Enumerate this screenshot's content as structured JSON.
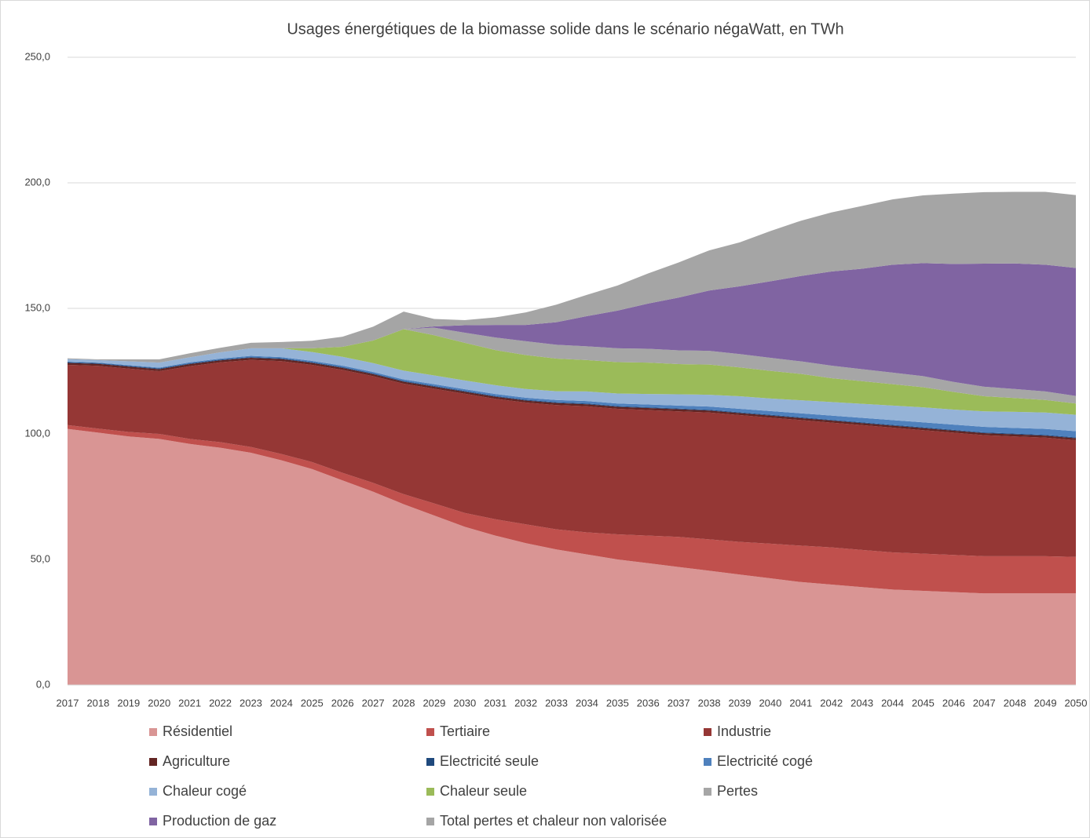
{
  "chart_data": {
    "type": "stacked_area",
    "title": "Usages énergétiques de la biomasse solide dans le scénario négaWatt, en TWh",
    "categories": [
      "2017",
      "2018",
      "2019",
      "2020",
      "2021",
      "2022",
      "2023",
      "2024",
      "2025",
      "2026",
      "2027",
      "2028",
      "2029",
      "2030",
      "2031",
      "2032",
      "2033",
      "2034",
      "2035",
      "2036",
      "2037",
      "2038",
      "2039",
      "2040",
      "2041",
      "2042",
      "2043",
      "2044",
      "2045",
      "2046",
      "2047",
      "2048",
      "2049",
      "2050"
    ],
    "ylim": [
      0,
      250
    ],
    "yticks": [
      {
        "value": 0,
        "label": "0,0"
      },
      {
        "value": 50,
        "label": "50,0"
      },
      {
        "value": 100,
        "label": "100,0"
      },
      {
        "value": 150,
        "label": "150,0"
      },
      {
        "value": 200,
        "label": "200,0"
      },
      {
        "value": 250,
        "label": "250,0"
      }
    ],
    "grid": true,
    "legend": "bottom",
    "series": [
      {
        "name": "Résidentiel",
        "color": "#d99594",
        "values": [
          102,
          100.5,
          99,
          98,
          96,
          94.5,
          92.5,
          89.5,
          86,
          81.5,
          77,
          72,
          67.5,
          63,
          59.5,
          56.5,
          54,
          52,
          50,
          48.5,
          47,
          45.5,
          44,
          42.5,
          41,
          40,
          39,
          38,
          37.5,
          37,
          36.5,
          36.5,
          36.5,
          36.5
        ]
      },
      {
        "name": "Tertiaire",
        "color": "#c0504d",
        "values": [
          1.5,
          1.6,
          1.8,
          2,
          2,
          2.2,
          2.3,
          2.5,
          2.8,
          3,
          3.5,
          4,
          4.8,
          5.5,
          6.5,
          7.5,
          8,
          8.8,
          10,
          11,
          12,
          12.5,
          13,
          13.8,
          14.5,
          14.8,
          14.8,
          14.8,
          14.8,
          14.8,
          14.8,
          14.8,
          14.8,
          14.5
        ]
      },
      {
        "name": "Industrie",
        "color": "#953735",
        "values": [
          24,
          25,
          25.2,
          25,
          29,
          31.8,
          34.7,
          37,
          38.7,
          41,
          42.5,
          44,
          45.7,
          47.5,
          48,
          48.5,
          49.5,
          50.2,
          50,
          50,
          50,
          50.5,
          50.5,
          50.2,
          50,
          49.7,
          49.7,
          49.7,
          49.2,
          48.7,
          48.2,
          47.7,
          47.2,
          46.5
        ]
      },
      {
        "name": "Agriculture",
        "color": "#632523",
        "values": [
          0.8,
          0.8,
          0.8,
          0.8,
          0.8,
          0.8,
          0.8,
          0.8,
          0.8,
          0.8,
          0.8,
          0.8,
          0.8,
          0.8,
          0.8,
          0.8,
          0.8,
          0.8,
          0.8,
          0.8,
          0.8,
          0.8,
          0.8,
          0.8,
          0.8,
          0.8,
          0.8,
          0.8,
          0.8,
          0.8,
          0.8,
          0.8,
          0.8,
          0.8
        ]
      },
      {
        "name": "Electricité seule",
        "color": "#1f497d",
        "values": [
          0.3,
          0.3,
          0.3,
          0.3,
          0.3,
          0.3,
          0.3,
          0.3,
          0.3,
          0.3,
          0.3,
          0.3,
          0.3,
          0.3,
          0.3,
          0.3,
          0.3,
          0.3,
          0.3,
          0.3,
          0.3,
          0.3,
          0.3,
          0.3,
          0.3,
          0.3,
          0.3,
          0.3,
          0.3,
          0.3,
          0.3,
          0.3,
          0.3,
          0.3
        ]
      },
      {
        "name": "Electricité cogé",
        "color": "#4f81bd",
        "values": [
          0.2,
          0.2,
          0.3,
          0.3,
          0.4,
          0.4,
          0.5,
          0.5,
          0.5,
          0.6,
          0.6,
          0.6,
          0.7,
          0.7,
          0.8,
          0.8,
          0.9,
          1,
          1,
          1.1,
          1.2,
          1.3,
          1.4,
          1.5,
          1.6,
          1.7,
          1.8,
          1.9,
          2,
          2.1,
          2.2,
          2.3,
          2.4,
          2.5
        ]
      },
      {
        "name": "Chaleur cogé",
        "color": "#95b3d7",
        "values": [
          1,
          1,
          1.5,
          2,
          2,
          2.5,
          3,
          3.5,
          3.5,
          3.5,
          3.5,
          3.5,
          3.5,
          3.5,
          3.5,
          3.5,
          3.5,
          3.8,
          4,
          4.2,
          4.5,
          4.7,
          5,
          5,
          5.2,
          5.4,
          5.6,
          5.8,
          6,
          6,
          6.2,
          6.4,
          6.5,
          6.5
        ]
      },
      {
        "name": "Chaleur seule",
        "color": "#9bbb59",
        "values": [
          0,
          0,
          0,
          0,
          0,
          0,
          0,
          0,
          1.5,
          4,
          9,
          16.5,
          16,
          15,
          14,
          13.5,
          13,
          12.5,
          12.5,
          12.5,
          12,
          12,
          11.5,
          11,
          10.5,
          9.5,
          9,
          8.5,
          8,
          7,
          6,
          5.5,
          5,
          4.5
        ]
      },
      {
        "name": "Pertes",
        "color": "#a6a6a6",
        "values": [
          0,
          0,
          0,
          0,
          0,
          0,
          0,
          0,
          0,
          0,
          0,
          0,
          3,
          4,
          5,
          5.5,
          5.5,
          5.5,
          5.5,
          5.5,
          5.5,
          5.5,
          5.3,
          5.2,
          5,
          5,
          4.8,
          4.6,
          4.4,
          4,
          3.8,
          3.6,
          3.4,
          3
        ]
      },
      {
        "name": "Production de gaz",
        "color": "#8064a2",
        "values": [
          0,
          0,
          0,
          0,
          0,
          0,
          0,
          0,
          0,
          0,
          0,
          0,
          0.5,
          3,
          5,
          6.5,
          9,
          12,
          15,
          18,
          21,
          24,
          27,
          30.5,
          34,
          37.5,
          40,
          43,
          45,
          47,
          49,
          50,
          50.5,
          51
        ]
      },
      {
        "name": "Total pertes et chaleur non valorisée",
        "color": "#a5a5a5",
        "values": [
          0.3,
          0.3,
          0.8,
          1.3,
          1.6,
          1.8,
          2.2,
          2.5,
          3,
          4,
          5.5,
          7,
          3,
          2,
          3,
          5,
          7,
          8.5,
          10,
          12,
          14,
          16,
          17.5,
          20,
          22,
          23.5,
          25,
          26,
          27,
          28,
          28.5,
          28.5,
          29,
          29
        ]
      }
    ]
  }
}
